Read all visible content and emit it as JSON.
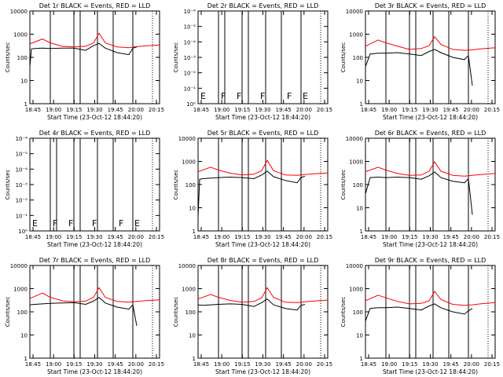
{
  "colors": {
    "events": "#000000",
    "lld": "#ff0000",
    "axes": "#000000",
    "background": "#ffffff"
  },
  "chart_data": [
    {
      "type": "line",
      "title": "Det 1r BLACK = Events, RED = LLD",
      "xlabel": "Start Time (23-Oct-12 18:44:20)",
      "ylabel": "Counts/sec",
      "xticks": [
        "18:45",
        "19:00",
        "19:15",
        "19:30",
        "19:45",
        "20:00",
        "20:15"
      ],
      "xlim": [
        18.74,
        20.39
      ],
      "ylim": [
        1,
        10000
      ],
      "yscale": "log",
      "yticks": [
        "1",
        "10",
        "100",
        "1000",
        "10000"
      ],
      "gaps": [
        19.0,
        19.3,
        19.38,
        19.6,
        19.8,
        20.05
      ],
      "letters": [],
      "series": [
        {
          "name": "LLD",
          "x": [
            18.74,
            18.9,
            19.0,
            19.15,
            19.3,
            19.45,
            19.55,
            19.62,
            19.7,
            19.85,
            20.0,
            20.1,
            20.2,
            20.39
          ],
          "values": [
            380,
            620,
            420,
            300,
            280,
            300,
            420,
            1100,
            420,
            280,
            260,
            290,
            310,
            340
          ]
        },
        {
          "name": "Events",
          "x": [
            18.74,
            18.76,
            18.8,
            18.9,
            19.0,
            19.15,
            19.3,
            19.45,
            19.55,
            19.62,
            19.7,
            19.85,
            20.0,
            20.05,
            20.1
          ],
          "values": [
            40,
            230,
            240,
            250,
            240,
            250,
            250,
            200,
            320,
            400,
            250,
            160,
            130,
            250,
            280
          ]
        }
      ]
    },
    {
      "type": "line",
      "title": "Det 2r BLACK = Events, RED = LLD",
      "xlabel": "Start Time (23-Oct-12 18:44:20)",
      "ylabel": "Counts/sec",
      "xticks": [
        "18:45",
        "19:00",
        "19:15",
        "19:30",
        "19:45",
        "20:00",
        "20:15"
      ],
      "xlim": [
        18.74,
        20.39
      ],
      "ylim": [
        1,
        1e-06
      ],
      "yscale": "log",
      "yticks": [
        "10⁰",
        "10⁻¹",
        "10⁻²",
        "10⁻³",
        "10⁻⁴",
        "10⁻⁵",
        "10⁻⁶"
      ],
      "gaps": [
        19.0,
        19.08,
        19.3,
        19.38,
        19.6,
        19.8,
        20.05
      ],
      "letters": [
        "E",
        "F",
        "F",
        "F",
        "F",
        "E"
      ],
      "series": []
    },
    {
      "type": "line",
      "title": "Det 3r BLACK = Events, RED = LLD",
      "xlabel": "Start Time (23-Oct-12 18:44:20)",
      "ylabel": "Counts/sec",
      "xticks": [
        "18:45",
        "19:00",
        "19:15",
        "19:30",
        "19:45",
        "20:00",
        "20:15"
      ],
      "xlim": [
        18.74,
        20.39
      ],
      "ylim": [
        1,
        10000
      ],
      "yscale": "log",
      "yticks": [
        "1",
        "10",
        "100",
        "1000",
        "10000"
      ],
      "gaps": [
        19.0,
        19.3,
        19.38,
        19.6,
        19.8,
        20.05
      ],
      "letters": [],
      "series": [
        {
          "name": "LLD",
          "x": [
            18.74,
            18.9,
            19.0,
            19.15,
            19.3,
            19.45,
            19.55,
            19.62,
            19.7,
            19.85,
            20.0,
            20.1,
            20.2,
            20.39
          ],
          "values": [
            300,
            560,
            420,
            300,
            220,
            240,
            320,
            780,
            360,
            220,
            200,
            210,
            230,
            260
          ]
        },
        {
          "name": "Events",
          "x": [
            18.74,
            18.8,
            18.9,
            19.0,
            19.15,
            19.3,
            19.45,
            19.55,
            19.62,
            19.7,
            19.85,
            20.0,
            20.05,
            20.1
          ],
          "values": [
            40,
            140,
            150,
            150,
            160,
            140,
            120,
            180,
            220,
            160,
            100,
            80,
            120,
            6
          ]
        }
      ]
    },
    {
      "type": "line",
      "title": "Det 4r BLACK = Events, RED = LLD",
      "xlabel": "Start Time (23-Oct-12 18:44:20)",
      "ylabel": "Counts/sec",
      "xticks": [
        "18:45",
        "19:00",
        "19:15",
        "19:30",
        "19:45",
        "20:00",
        "20:15"
      ],
      "xlim": [
        18.74,
        20.39
      ],
      "ylim": [
        1,
        1e-06
      ],
      "yscale": "log",
      "yticks": [
        "10⁰",
        "10⁻¹",
        "10⁻²",
        "10⁻³",
        "10⁻⁴",
        "10⁻⁵",
        "10⁻⁶"
      ],
      "gaps": [
        19.0,
        19.08,
        19.3,
        19.38,
        19.6,
        19.8,
        20.05
      ],
      "letters": [
        "E",
        "F",
        "F",
        "F",
        "F",
        "E"
      ],
      "series": []
    },
    {
      "type": "line",
      "title": "Det 5r BLACK = Events, RED = LLD",
      "xlabel": "Start Time (23-Oct-12 18:44:20)",
      "ylabel": "Counts/sec",
      "xticks": [
        "18:45",
        "19:00",
        "19:15",
        "19:30",
        "19:45",
        "20:00",
        "20:15"
      ],
      "xlim": [
        18.74,
        20.39
      ],
      "ylim": [
        1,
        10000
      ],
      "yscale": "log",
      "yticks": [
        "1",
        "10",
        "100",
        "1000",
        "10000"
      ],
      "gaps": [
        19.0,
        19.3,
        19.38,
        19.6,
        19.8,
        20.05
      ],
      "letters": [],
      "series": [
        {
          "name": "LLD",
          "x": [
            18.74,
            18.9,
            19.0,
            19.15,
            19.3,
            19.45,
            19.55,
            19.62,
            19.7,
            19.85,
            20.0,
            20.1,
            20.2,
            20.39
          ],
          "values": [
            360,
            560,
            420,
            310,
            260,
            280,
            400,
            1100,
            400,
            260,
            250,
            270,
            290,
            320
          ]
        },
        {
          "name": "Events",
          "x": [
            18.74,
            18.76,
            18.8,
            18.9,
            19.0,
            19.15,
            19.3,
            19.45,
            19.55,
            19.62,
            19.7,
            19.85,
            20.0,
            20.05,
            20.1
          ],
          "values": [
            4,
            170,
            180,
            190,
            200,
            210,
            200,
            180,
            260,
            380,
            220,
            150,
            120,
            200,
            230
          ]
        }
      ]
    },
    {
      "type": "line",
      "title": "Det 6r BLACK = Events, RED = LLD",
      "xlabel": "Start Time (23-Oct-12 18:44:20)",
      "ylabel": "Counts/sec",
      "xticks": [
        "18:45",
        "19:00",
        "19:15",
        "19:30",
        "19:45",
        "20:00",
        "20:15"
      ],
      "xlim": [
        18.74,
        20.39
      ],
      "ylim": [
        1,
        10000
      ],
      "yscale": "log",
      "yticks": [
        "1",
        "10",
        "100",
        "1000",
        "10000"
      ],
      "gaps": [
        19.0,
        19.3,
        19.38,
        19.6,
        19.8,
        20.05
      ],
      "letters": [],
      "series": [
        {
          "name": "LLD",
          "x": [
            18.74,
            18.9,
            19.0,
            19.15,
            19.3,
            19.45,
            19.55,
            19.62,
            19.7,
            19.85,
            20.0,
            20.1,
            20.2,
            20.39
          ],
          "values": [
            360,
            560,
            420,
            300,
            250,
            260,
            380,
            950,
            380,
            250,
            230,
            250,
            270,
            300
          ]
        },
        {
          "name": "Events",
          "x": [
            18.74,
            18.8,
            18.9,
            19.0,
            19.15,
            19.3,
            19.45,
            19.55,
            19.62,
            19.7,
            19.85,
            20.0,
            20.05,
            20.1
          ],
          "values": [
            40,
            200,
            210,
            200,
            210,
            200,
            170,
            240,
            350,
            200,
            140,
            120,
            180,
            5
          ]
        }
      ]
    },
    {
      "type": "line",
      "title": "Det 7r BLACK = Events, RED = LLD",
      "xlabel": "Start Time (23-Oct-12 18:44:20)",
      "ylabel": "Counts/sec",
      "xticks": [
        "18:45",
        "19:00",
        "19:15",
        "19:30",
        "19:45",
        "20:00",
        "20:15"
      ],
      "xlim": [
        18.74,
        20.39
      ],
      "ylim": [
        1,
        10000
      ],
      "yscale": "log",
      "yticks": [
        "1",
        "10",
        "100",
        "1000",
        "10000"
      ],
      "gaps": [
        19.0,
        19.3,
        19.38,
        19.6,
        19.8,
        20.05
      ],
      "letters": [],
      "series": [
        {
          "name": "LLD",
          "x": [
            18.74,
            18.9,
            19.0,
            19.15,
            19.3,
            19.45,
            19.55,
            19.62,
            19.7,
            19.85,
            20.0,
            20.1,
            20.2,
            20.39
          ],
          "values": [
            380,
            640,
            420,
            300,
            270,
            290,
            420,
            1100,
            420,
            280,
            260,
            280,
            300,
            330
          ]
        },
        {
          "name": "Events",
          "x": [
            18.74,
            18.8,
            18.9,
            19.0,
            19.15,
            19.3,
            19.45,
            19.55,
            19.62,
            19.7,
            19.85,
            20.0,
            20.05,
            20.1
          ],
          "values": [
            200,
            210,
            220,
            230,
            240,
            250,
            210,
            290,
            420,
            240,
            160,
            130,
            200,
            25
          ]
        }
      ]
    },
    {
      "type": "line",
      "title": "Det 8r BLACK = Events, RED = LLD",
      "xlabel": "Start Time (23-Oct-12 18:44:20)",
      "ylabel": "Counts/sec",
      "xticks": [
        "18:45",
        "19:00",
        "19:15",
        "19:30",
        "19:45",
        "20:00",
        "20:15"
      ],
      "xlim": [
        18.74,
        20.39
      ],
      "ylim": [
        1,
        10000
      ],
      "yscale": "log",
      "yticks": [
        "1",
        "10",
        "100",
        "1000",
        "10000"
      ],
      "gaps": [
        19.0,
        19.3,
        19.38,
        19.6,
        19.8,
        20.05
      ],
      "letters": [],
      "series": [
        {
          "name": "LLD",
          "x": [
            18.74,
            18.9,
            19.0,
            19.15,
            19.3,
            19.45,
            19.55,
            19.62,
            19.7,
            19.85,
            20.0,
            20.1,
            20.2,
            20.39
          ],
          "values": [
            360,
            560,
            420,
            310,
            260,
            280,
            400,
            1100,
            420,
            260,
            250,
            270,
            290,
            320
          ]
        },
        {
          "name": "Events",
          "x": [
            18.74,
            18.8,
            18.9,
            19.0,
            19.15,
            19.3,
            19.45,
            19.55,
            19.62,
            19.7,
            19.85,
            20.0,
            20.05,
            20.1
          ],
          "values": [
            200,
            190,
            200,
            210,
            220,
            210,
            170,
            250,
            360,
            200,
            140,
            120,
            190,
            210
          ]
        }
      ]
    },
    {
      "type": "line",
      "title": "Det 9r BLACK = Events, RED = LLD",
      "xlabel": "Start Time (23-Oct-12 18:44:20)",
      "ylabel": "Counts/sec",
      "xticks": [
        "18:45",
        "19:00",
        "19:15",
        "19:30",
        "19:45",
        "20:00",
        "20:15"
      ],
      "xlim": [
        18.74,
        20.39
      ],
      "ylim": [
        1,
        10000
      ],
      "yscale": "log",
      "yticks": [
        "1",
        "10",
        "100",
        "1000",
        "10000"
      ],
      "gaps": [
        19.0,
        19.3,
        19.38,
        19.6,
        19.8,
        20.05
      ],
      "letters": [],
      "series": [
        {
          "name": "LLD",
          "x": [
            18.74,
            18.9,
            19.0,
            19.15,
            19.3,
            19.45,
            19.55,
            19.62,
            19.7,
            19.85,
            20.0,
            20.1,
            20.2,
            20.39
          ],
          "values": [
            300,
            520,
            400,
            280,
            220,
            230,
            300,
            760,
            340,
            210,
            190,
            200,
            220,
            250
          ]
        },
        {
          "name": "Events",
          "x": [
            18.74,
            18.8,
            18.9,
            19.0,
            19.15,
            19.3,
            19.45,
            19.55,
            19.62,
            19.7,
            19.85,
            20.0,
            20.05,
            20.1
          ],
          "values": [
            40,
            140,
            150,
            150,
            160,
            140,
            120,
            180,
            220,
            150,
            100,
            80,
            110,
            140
          ]
        }
      ]
    }
  ]
}
